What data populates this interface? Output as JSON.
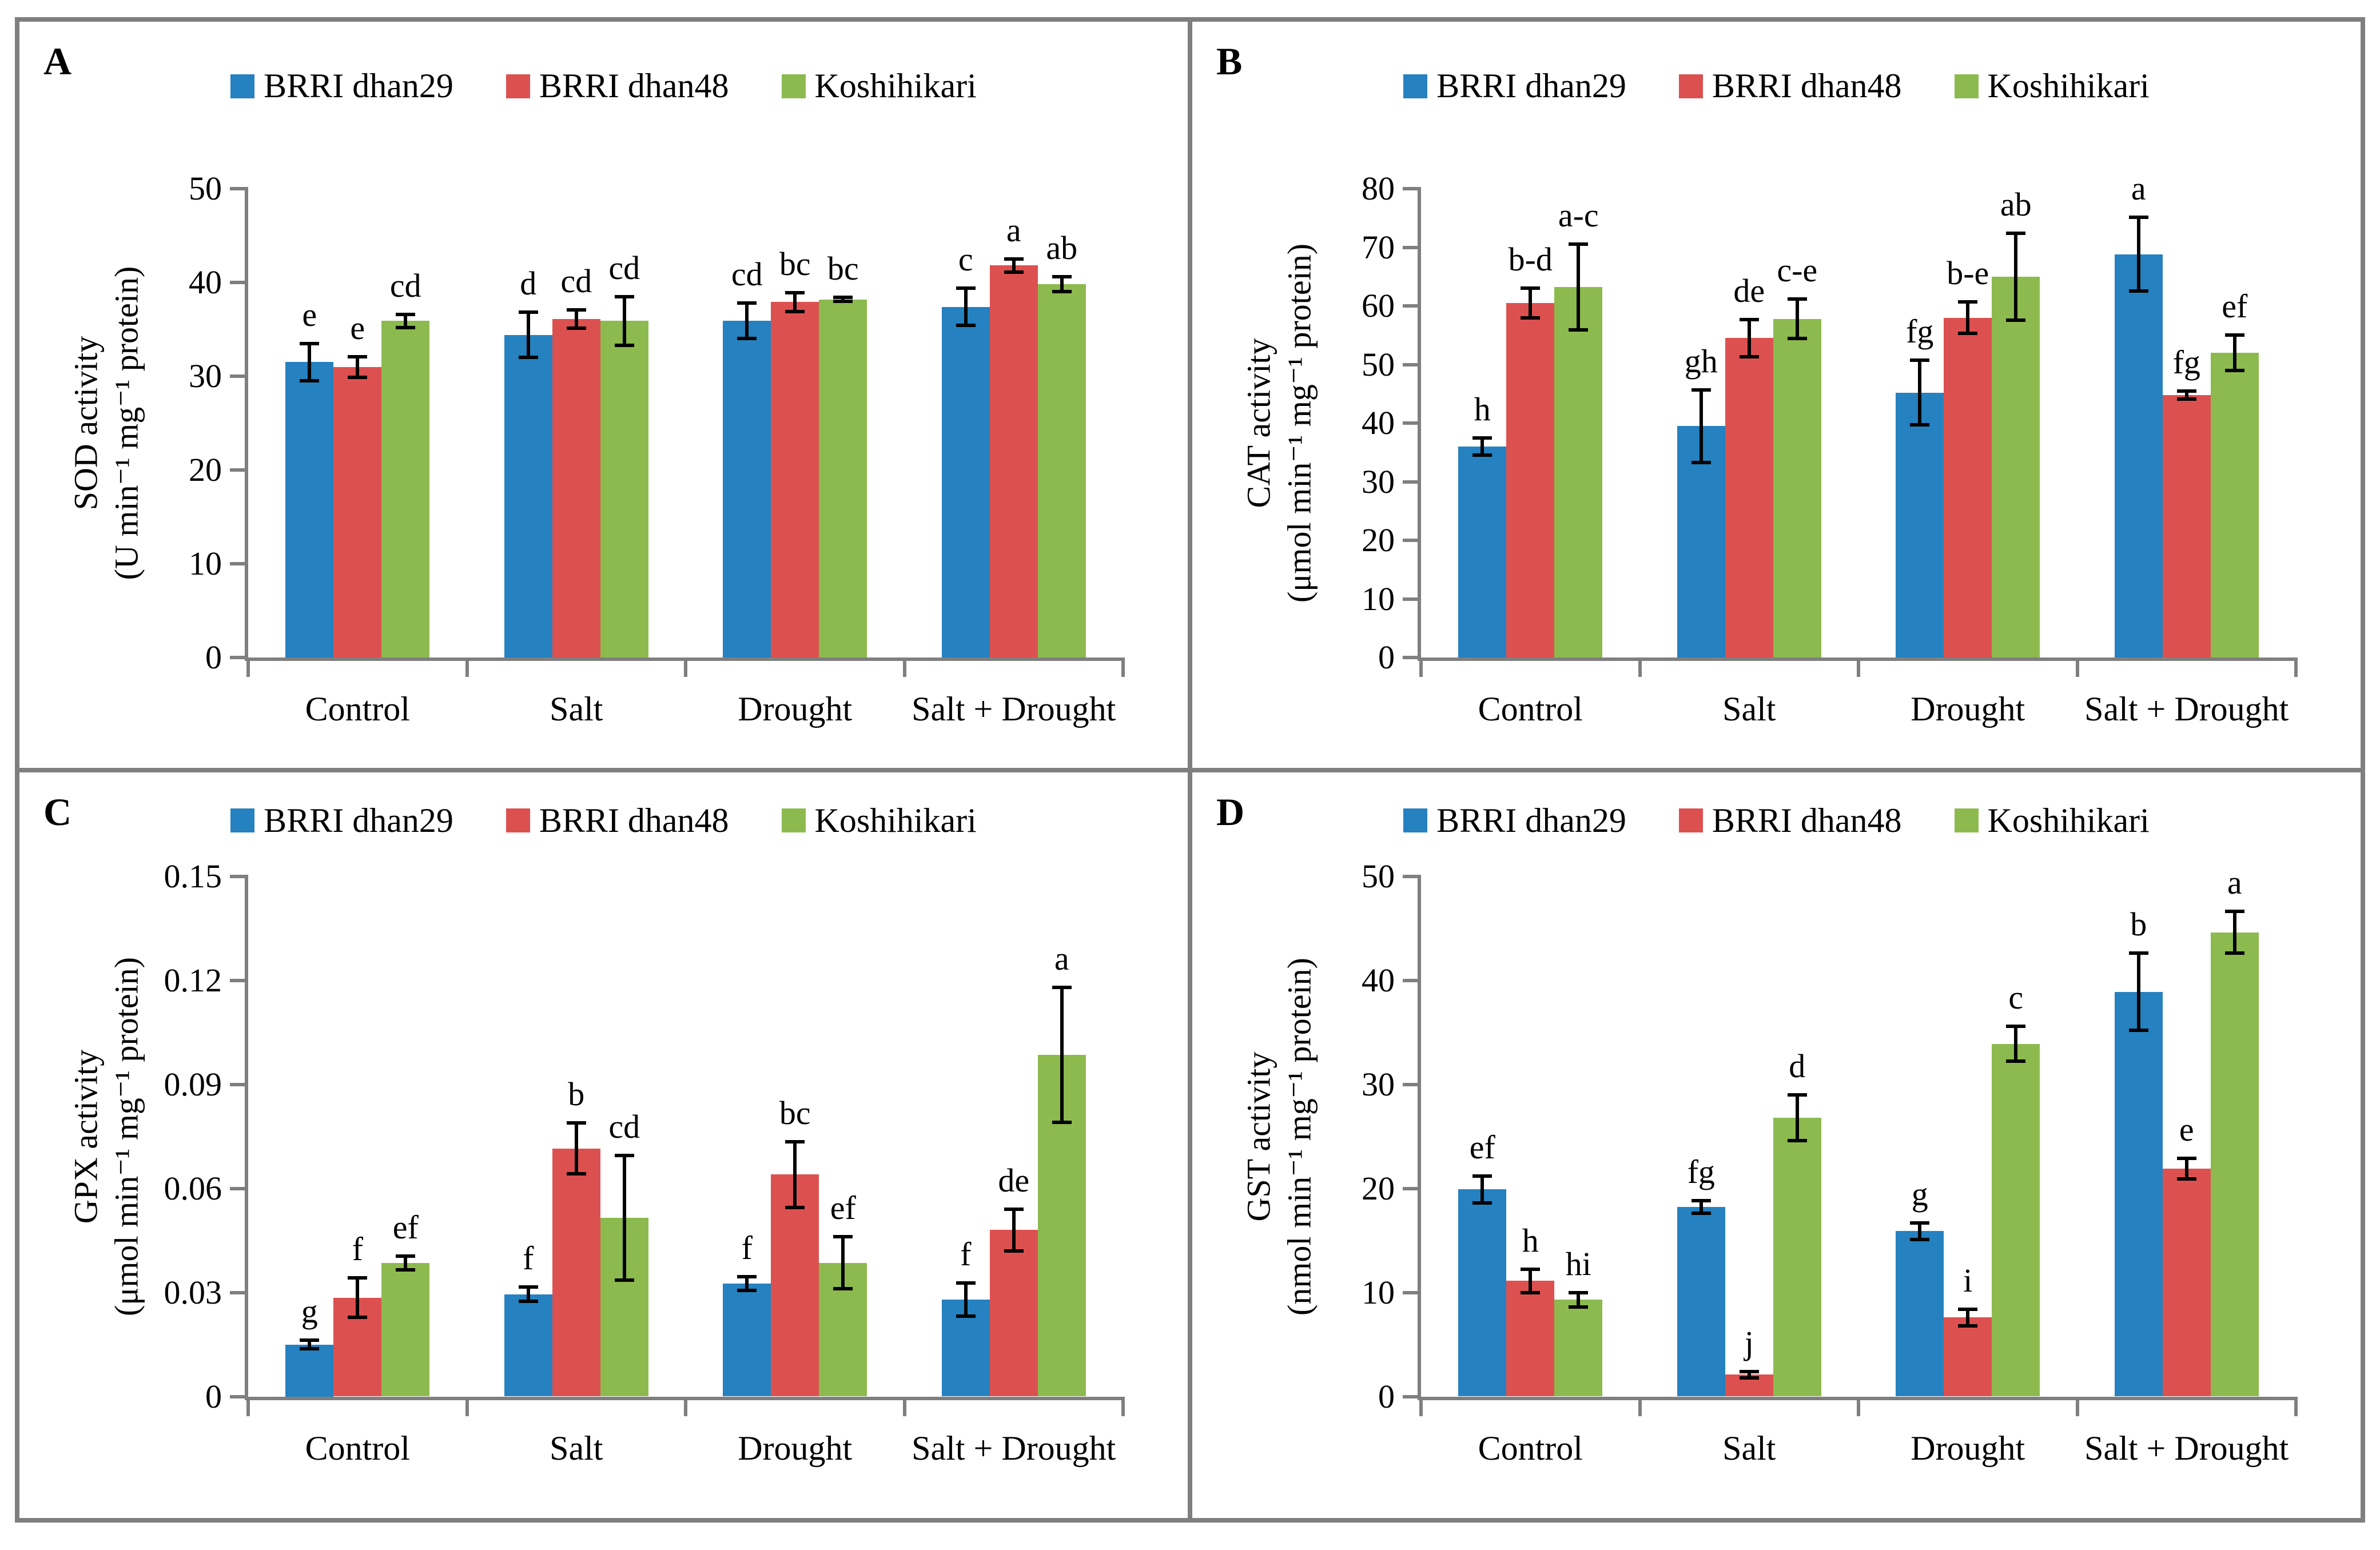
{
  "figure_title": "",
  "chart_data": [
    {
      "type": "bar",
      "label": "A",
      "ylabel_lines": [
        "SOD activity",
        "(U min⁻¹ mg⁻¹ protein)"
      ],
      "ylim": [
        0,
        50
      ],
      "yticks": [
        "0",
        "10",
        "20",
        "30",
        "40",
        "50"
      ],
      "grid": "off",
      "legend_position": "top-center",
      "categories": [
        "Control",
        "Salt",
        "Drought",
        "Salt + Drought"
      ],
      "series": [
        {
          "name": "BRRI dhan29",
          "color": "#2581BF",
          "values": [
            31.5,
            34.4,
            35.9,
            37.4
          ],
          "errors": [
            2.0,
            2.4,
            1.9,
            2.0
          ],
          "letters": [
            "e",
            "d",
            "cd",
            "c"
          ]
        },
        {
          "name": "BRRI dhan48",
          "color": "#DC5150",
          "values": [
            31.0,
            36.1,
            37.9,
            41.8
          ],
          "errors": [
            1.1,
            1.0,
            1.0,
            0.7
          ],
          "letters": [
            "e",
            "cd",
            "bc",
            "a"
          ]
        },
        {
          "name": "Koshihikari",
          "color": "#8CBA4E",
          "values": [
            35.9,
            35.9,
            38.2,
            39.8
          ],
          "errors": [
            0.7,
            2.6,
            0.2,
            0.8
          ],
          "letters": [
            "cd",
            "cd",
            "bc",
            "ab"
          ]
        }
      ]
    },
    {
      "type": "bar",
      "label": "B",
      "ylabel_lines": [
        "CAT activity",
        "(μmol min⁻¹ mg⁻¹ protein)"
      ],
      "ylim": [
        0,
        80
      ],
      "yticks": [
        "0",
        "10",
        "20",
        "30",
        "40",
        "50",
        "60",
        "70",
        "80"
      ],
      "grid": "off",
      "legend_position": "top-center",
      "categories": [
        "Control",
        "Salt",
        "Drought",
        "Salt + Drought"
      ],
      "series": [
        {
          "name": "BRRI dhan29",
          "color": "#2581BF",
          "values": [
            36.0,
            39.5,
            45.2,
            68.8
          ],
          "errors": [
            1.5,
            6.2,
            5.5,
            6.3
          ],
          "letters": [
            "h",
            "gh",
            "fg",
            "a"
          ]
        },
        {
          "name": "BRRI dhan48",
          "color": "#DC5150",
          "values": [
            60.5,
            54.5,
            58.0,
            44.8
          ],
          "errors": [
            2.5,
            3.2,
            2.7,
            0.7
          ],
          "letters": [
            "b-d",
            "de",
            "b-e",
            "fg"
          ]
        },
        {
          "name": "Koshihikari",
          "color": "#8CBA4E",
          "values": [
            63.2,
            57.8,
            65.0,
            52.0
          ],
          "errors": [
            7.3,
            3.4,
            7.4,
            3.0
          ],
          "letters": [
            "a-c",
            "c-e",
            "ab",
            "ef"
          ]
        }
      ]
    },
    {
      "type": "bar",
      "label": "C",
      "ylabel_lines": [
        "GPX activity",
        "(μmol min⁻¹ mg⁻¹ protein)"
      ],
      "ylim": [
        0,
        0.15
      ],
      "yticks": [
        "0",
        "0.03",
        "0.06",
        "0.09",
        "0.12",
        "0.15"
      ],
      "grid": "off",
      "legend_position": "top-center",
      "categories": [
        "Control",
        "Salt",
        "Drought",
        "Salt + Drought"
      ],
      "series": [
        {
          "name": "BRRI dhan29",
          "color": "#2581BF",
          "values": [
            0.015,
            0.0295,
            0.0325,
            0.028
          ],
          "errors": [
            0.0012,
            0.002,
            0.002,
            0.0048
          ],
          "letters": [
            "g",
            "f",
            "f",
            "f"
          ]
        },
        {
          "name": "BRRI dhan48",
          "color": "#DC5150",
          "values": [
            0.0285,
            0.0715,
            0.064,
            0.048
          ],
          "errors": [
            0.0057,
            0.0073,
            0.0095,
            0.006
          ],
          "letters": [
            "f",
            "b",
            "bc",
            "de"
          ]
        },
        {
          "name": "Koshihikari",
          "color": "#8CBA4E",
          "values": [
            0.0385,
            0.0515,
            0.0385,
            0.0985
          ],
          "errors": [
            0.002,
            0.018,
            0.0075,
            0.0195
          ],
          "letters": [
            "ef",
            "cd",
            "ef",
            "a"
          ]
        }
      ]
    },
    {
      "type": "bar",
      "label": "D",
      "ylabel_lines": [
        "GST activity",
        "(nmol min⁻¹ mg⁻¹ protein)"
      ],
      "ylim": [
        0,
        50
      ],
      "yticks": [
        "0",
        "10",
        "20",
        "30",
        "40",
        "50"
      ],
      "grid": "off",
      "legend_position": "top-center",
      "categories": [
        "Control",
        "Salt",
        "Drought",
        "Salt + Drought"
      ],
      "series": [
        {
          "name": "BRRI dhan29",
          "color": "#2581BF",
          "values": [
            19.9,
            18.2,
            15.9,
            38.9
          ],
          "errors": [
            1.3,
            0.6,
            0.8,
            3.7
          ],
          "letters": [
            "ef",
            "fg",
            "g",
            "b"
          ]
        },
        {
          "name": "BRRI dhan48",
          "color": "#DC5150",
          "values": [
            11.1,
            2.1,
            7.6,
            21.9
          ],
          "errors": [
            1.1,
            0.3,
            0.8,
            1.0
          ],
          "letters": [
            "h",
            "j",
            "i",
            "e"
          ]
        },
        {
          "name": "Koshihikari",
          "color": "#8CBA4E",
          "values": [
            9.3,
            26.8,
            33.9,
            44.6
          ],
          "errors": [
            0.7,
            2.2,
            1.7,
            2.0
          ],
          "letters": [
            "hi",
            "d",
            "c",
            "a"
          ]
        }
      ]
    }
  ]
}
